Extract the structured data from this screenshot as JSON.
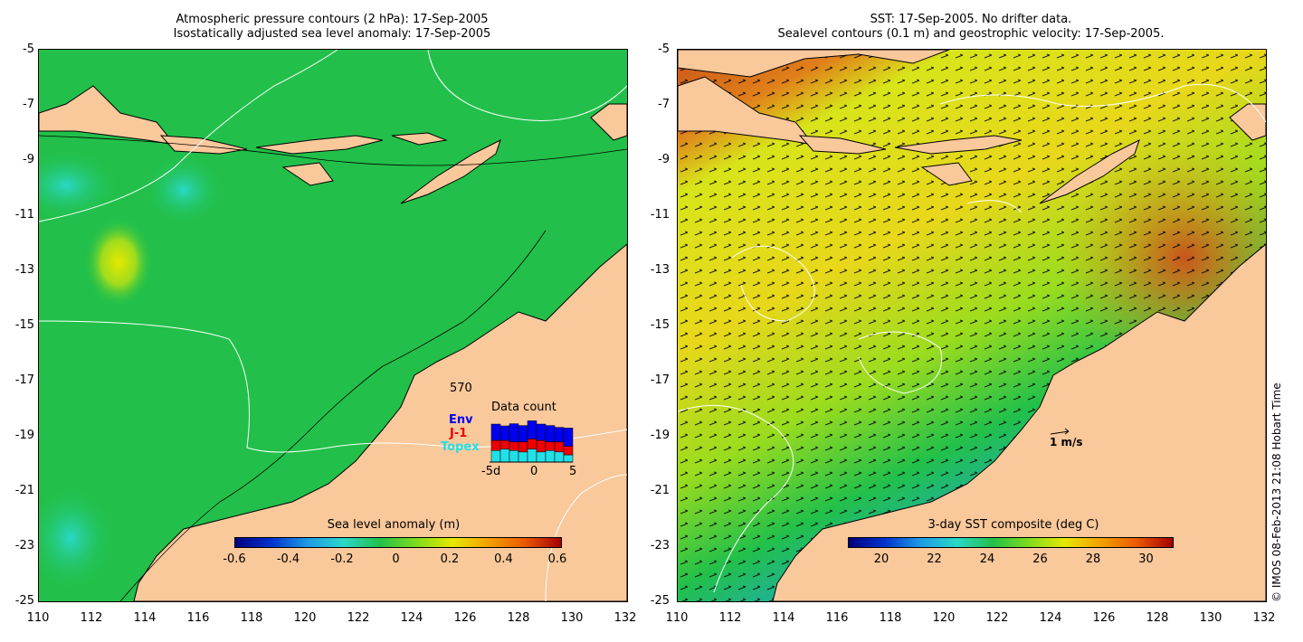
{
  "left": {
    "title_line1": "Atmospheric pressure contours (2 hPa): 17-Sep-2005",
    "title_line2": "Isostatically adjusted sea level anomaly: 17-Sep-2005",
    "colorbar_title": "Sea level anomaly (m)",
    "colorbar_labels": [
      "-0.6",
      "-0.4",
      "-0.2",
      "0",
      "0.2",
      "0.4",
      "0.6"
    ],
    "data_count": {
      "title": "Data count",
      "max": "570",
      "series": [
        "Env",
        "J-1",
        "Topex"
      ],
      "xticks": [
        "-5d",
        "0",
        "5"
      ],
      "colors": {
        "Env": "#0000ee",
        "J-1": "#ee0000",
        "Topex": "#22e0e8"
      }
    }
  },
  "right": {
    "title_line1": "SST: 17-Sep-2005. No drifter data.",
    "title_line2": "Sealevel contours (0.1 m) and geostrophic velocity: 17-Sep-2005.",
    "colorbar_title": "3-day SST composite (deg C)",
    "colorbar_labels": [
      "20",
      "22",
      "24",
      "26",
      "28",
      "30"
    ],
    "scale_label": "1 m/s"
  },
  "y_ticks": [
    "-5",
    "-7",
    "-9",
    "-11",
    "-13",
    "-15",
    "-17",
    "-19",
    "-21",
    "-23",
    "-25"
  ],
  "x_ticks": [
    "110",
    "112",
    "114",
    "116",
    "118",
    "120",
    "122",
    "124",
    "126",
    "128",
    "130",
    "132"
  ],
  "credit": "© IMOS 08-Feb-2013 21:08 Hobart Time",
  "colors": {
    "land": "#f9c89b",
    "ocean_left": "#22c04a",
    "coastline": "#000000"
  }
}
